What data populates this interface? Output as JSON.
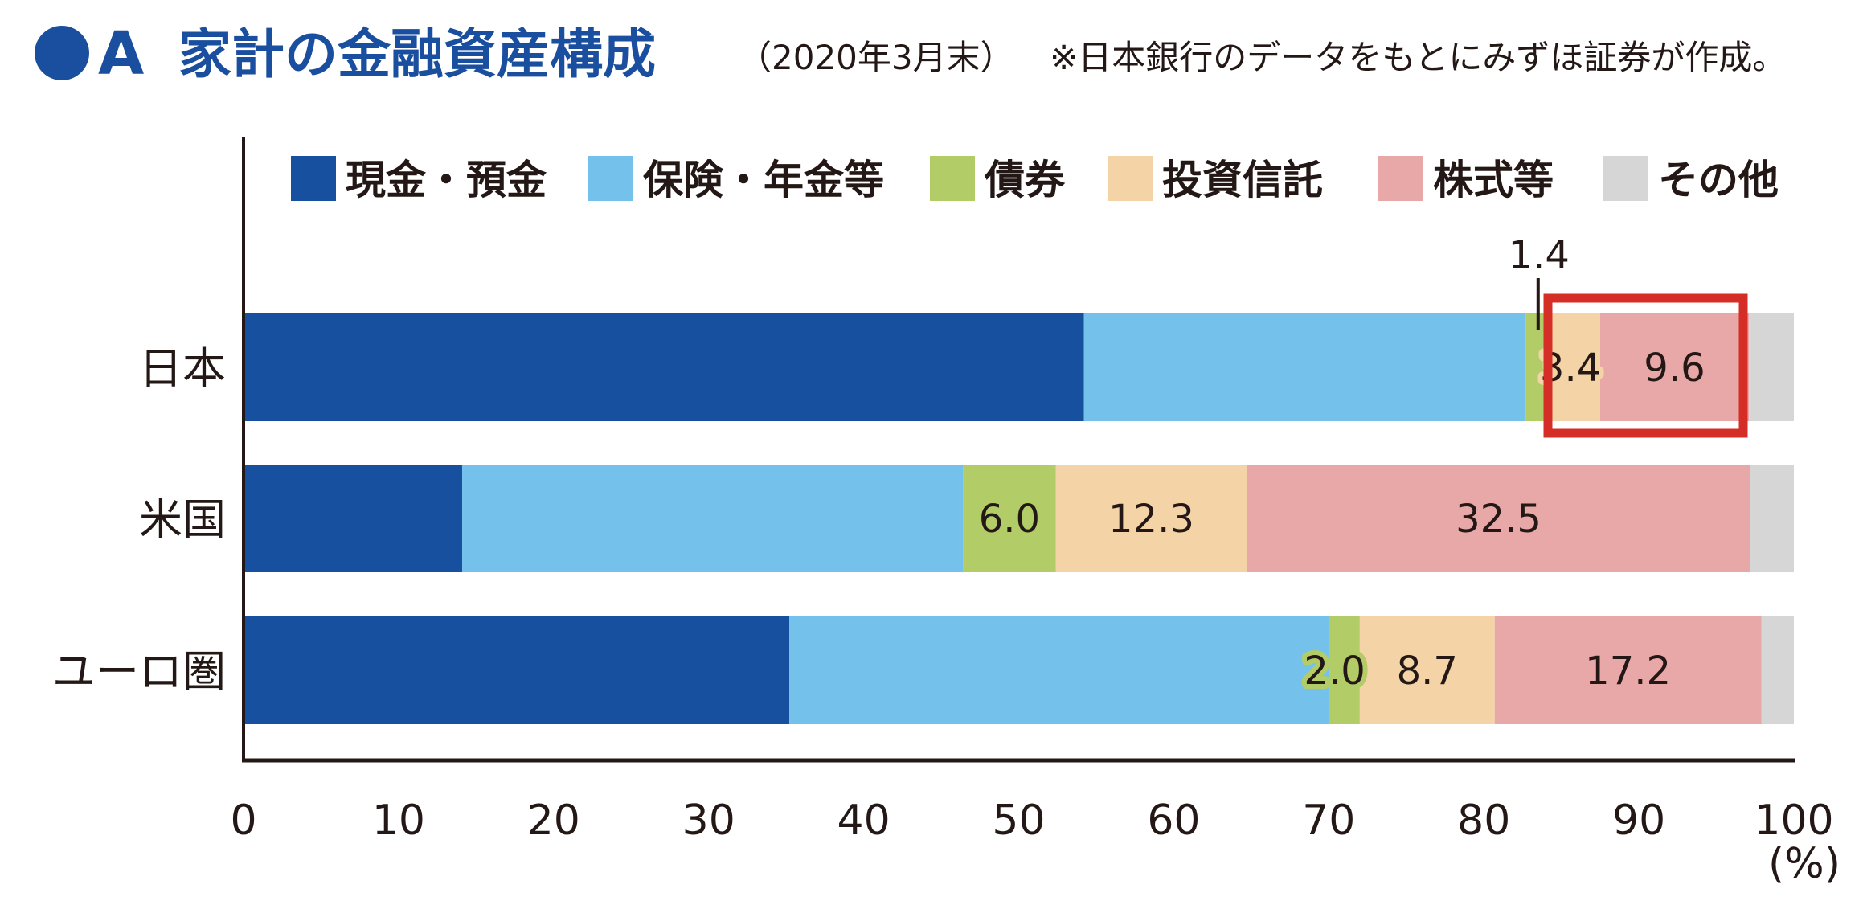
{
  "header": {
    "marker": "●",
    "letter": "A",
    "title": "家計の金融資産構成",
    "date": "（2020年3月末）",
    "note": "※日本銀行のデータをもとにみずほ証券が作成。"
  },
  "colors": {
    "title": "#1a4f9f",
    "highlight_box": "#d42e27",
    "highlight_category": "#d42e27"
  },
  "chart_data": {
    "type": "bar",
    "orientation": "horizontal",
    "stacked": true,
    "categories": [
      "日本",
      "米国",
      "ユーロ圏"
    ],
    "highlight_category": "日本",
    "series": [
      {
        "name": "現金・預金",
        "color": "#17509f",
        "values": [
          54.2,
          14.1,
          35.2
        ],
        "labels": [
          "",
          "",
          ""
        ]
      },
      {
        "name": "保険・年金等",
        "color": "#74c2ec",
        "values": [
          28.5,
          32.3,
          34.8
        ],
        "labels": [
          "",
          "",
          ""
        ]
      },
      {
        "name": "債券",
        "color": "#b2cc67",
        "values": [
          1.4,
          6.0,
          2.0
        ],
        "labels": [
          "1.4",
          "6.0",
          "2.0"
        ]
      },
      {
        "name": "投資信託",
        "color": "#f4d4a6",
        "values": [
          3.4,
          12.3,
          8.7
        ],
        "labels": [
          "3.4",
          "12.3",
          "8.7"
        ]
      },
      {
        "name": "株式等",
        "color": "#e7a8a7",
        "values": [
          9.6,
          32.5,
          17.2
        ],
        "labels": [
          "9.6",
          "32.5",
          "17.2"
        ]
      },
      {
        "name": "その他",
        "color": "#d6d6d6",
        "values": [
          2.9,
          2.8,
          2.1
        ],
        "labels": [
          "",
          "",
          ""
        ]
      }
    ],
    "xlim": [
      0,
      100
    ],
    "xticks": [
      "0",
      "10",
      "20",
      "30",
      "40",
      "50",
      "60",
      "70",
      "80",
      "90",
      "100"
    ],
    "xunit": "(%)",
    "legend": "top",
    "grid": false,
    "annotation": "日本の投資信託・株式等を赤枠で強調"
  }
}
